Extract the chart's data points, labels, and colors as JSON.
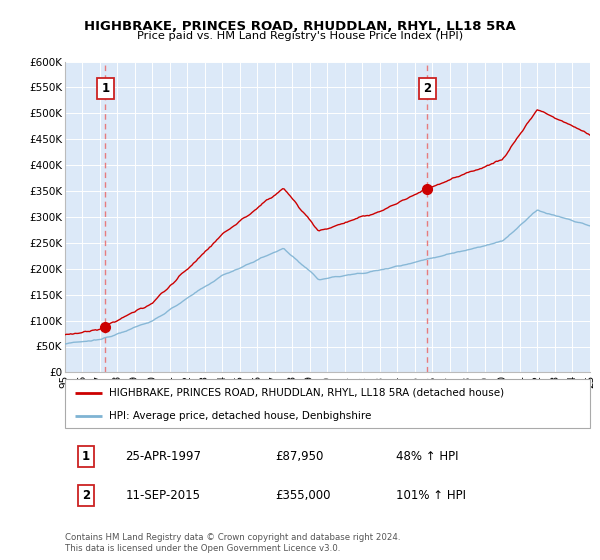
{
  "title": "HIGHBRAKE, PRINCES ROAD, RHUDDLAN, RHYL, LL18 5RA",
  "subtitle": "Price paid vs. HM Land Registry's House Price Index (HPI)",
  "legend_line1": "HIGHBRAKE, PRINCES ROAD, RHUDDLAN, RHYL, LL18 5RA (detached house)",
  "legend_line2": "HPI: Average price, detached house, Denbighshire",
  "annotation1_date": "25-APR-1997",
  "annotation1_price": "£87,950",
  "annotation1_hpi": "48% ↑ HPI",
  "annotation2_date": "11-SEP-2015",
  "annotation2_price": "£355,000",
  "annotation2_hpi": "101% ↑ HPI",
  "footer": "Contains HM Land Registry data © Crown copyright and database right 2024.\nThis data is licensed under the Open Government Licence v3.0.",
  "plot_bg_color": "#dce9f8",
  "red_color": "#cc0000",
  "blue_color": "#7fb3d3",
  "dashed_red": "#e87070",
  "ylim_min": 0,
  "ylim_max": 600000,
  "year_start": 1995,
  "year_end": 2025,
  "sale1_year": 1997.32,
  "sale1_price": 87950,
  "sale2_year": 2015.72,
  "sale2_price": 355000
}
